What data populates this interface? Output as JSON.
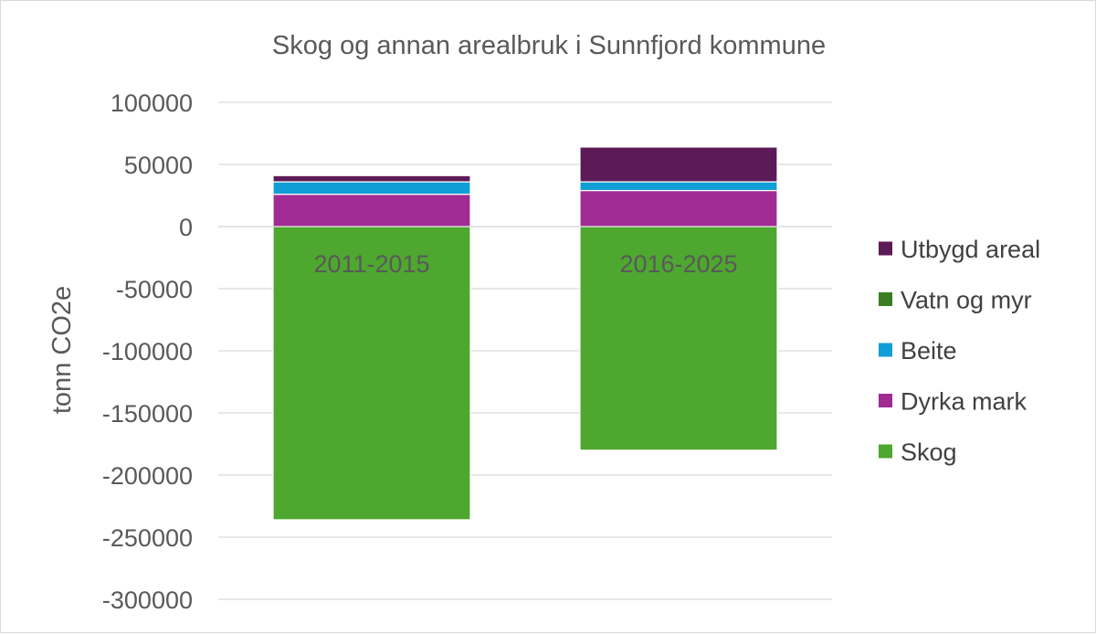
{
  "chart_data": {
    "type": "bar",
    "stacked": true,
    "title": "Skog og annan arealbruk i Sunnfjord kommune",
    "ylabel": "tonn CO2e",
    "xlabel": "",
    "ylim": [
      -300000,
      100000
    ],
    "yticks": [
      100000,
      50000,
      0,
      -50000,
      -100000,
      -150000,
      -200000,
      -250000,
      -300000
    ],
    "ytick_labels": [
      "100000",
      "50000",
      "0",
      "-50000",
      "-100000",
      "-150000",
      "-200000",
      "-250000",
      "-300000"
    ],
    "grid": true,
    "legend_position": "right",
    "categories": [
      "2011-2015",
      "2016-2025"
    ],
    "series": [
      {
        "name": "Skog",
        "color": "#4ea72e",
        "values": [
          -236000,
          -180000
        ]
      },
      {
        "name": "Dyrka mark",
        "color": "#a02b93",
        "values": [
          26000,
          29000
        ]
      },
      {
        "name": "Beite",
        "color": "#0f9ed5",
        "values": [
          10000,
          7000
        ]
      },
      {
        "name": "Vatn og myr",
        "color": "#3b7d23",
        "values": [
          0,
          0
        ]
      },
      {
        "name": "Utbygd areal",
        "color": "#5c1a56",
        "values": [
          5000,
          28000
        ]
      }
    ],
    "legend_order": [
      "Utbygd areal",
      "Vatn og myr",
      "Beite",
      "Dyrka mark",
      "Skog"
    ]
  }
}
